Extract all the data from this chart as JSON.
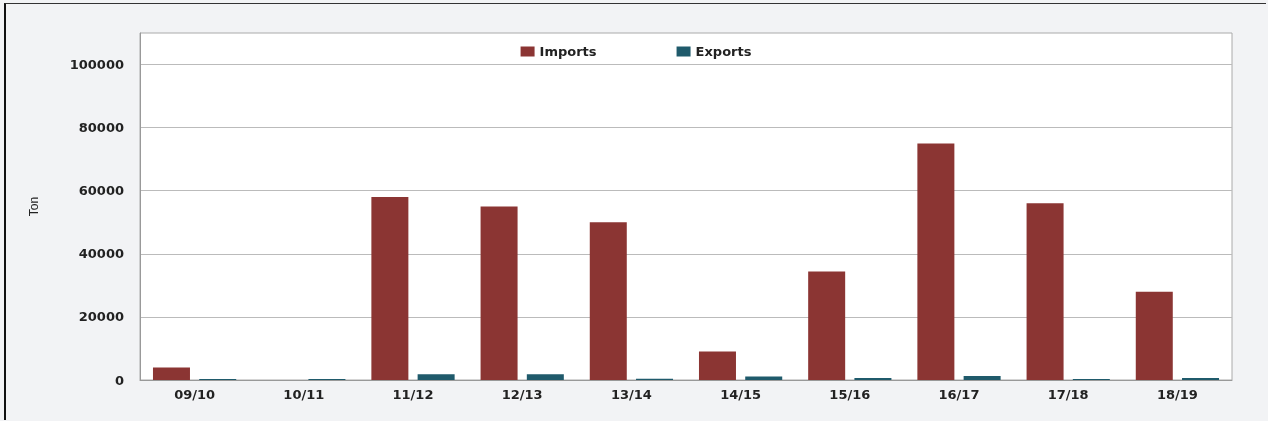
{
  "chart_data": {
    "type": "bar",
    "ylabel": "Ton",
    "categories": [
      "09/10",
      "10/11",
      "11/12",
      "12/13",
      "13/14",
      "14/15",
      "15/16",
      "16/17",
      "17/18",
      "18/19"
    ],
    "series": [
      {
        "name": "Imports",
        "color": "#8b3533",
        "values": [
          4000,
          null,
          58000,
          55000,
          50000,
          9000,
          34400,
          75000,
          56000,
          28000
        ]
      },
      {
        "name": "Exports",
        "color": "#1f5a6b",
        "values": [
          300,
          300,
          1800,
          1800,
          400,
          1100,
          600,
          1300,
          300,
          600
        ]
      }
    ],
    "ylim": [
      0,
      110000
    ],
    "yticks": [
      0,
      20000,
      40000,
      60000,
      80000,
      100000
    ],
    "grid": "y",
    "legend": "top"
  }
}
